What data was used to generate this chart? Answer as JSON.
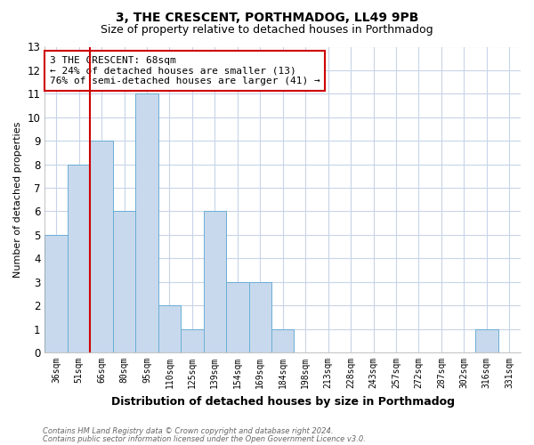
{
  "title1": "3, THE CRESCENT, PORTHMADOG, LL49 9PB",
  "title2": "Size of property relative to detached houses in Porthmadog",
  "xlabel": "Distribution of detached houses by size in Porthmadog",
  "ylabel": "Number of detached properties",
  "categories": [
    "36sqm",
    "51sqm",
    "66sqm",
    "80sqm",
    "95sqm",
    "110sqm",
    "125sqm",
    "139sqm",
    "154sqm",
    "169sqm",
    "184sqm",
    "198sqm",
    "213sqm",
    "228sqm",
    "243sqm",
    "257sqm",
    "272sqm",
    "287sqm",
    "302sqm",
    "316sqm",
    "331sqm"
  ],
  "values": [
    5,
    8,
    9,
    6,
    11,
    2,
    1,
    6,
    3,
    3,
    1,
    0,
    0,
    0,
    0,
    0,
    0,
    0,
    0,
    1,
    0
  ],
  "bar_color": "#c8d9ed",
  "bar_edge_color": "#6baed6",
  "vline_x": 2,
  "vline_color": "#cc0000",
  "annotation_box_text": "3 THE CRESCENT: 68sqm\n← 24% of detached houses are smaller (13)\n76% of semi-detached houses are larger (41) →",
  "annotation_box_color": "#cc0000",
  "annotation_box_bg": "#ffffff",
  "ylim": [
    0,
    13
  ],
  "yticks": [
    0,
    1,
    2,
    3,
    4,
    5,
    6,
    7,
    8,
    9,
    10,
    11,
    12,
    13
  ],
  "footer1": "Contains HM Land Registry data © Crown copyright and database right 2024.",
  "footer2": "Contains public sector information licensed under the Open Government Licence v3.0.",
  "bg_color": "#ffffff",
  "grid_color": "#c8d4e8",
  "title1_fontsize": 10,
  "title2_fontsize": 9
}
